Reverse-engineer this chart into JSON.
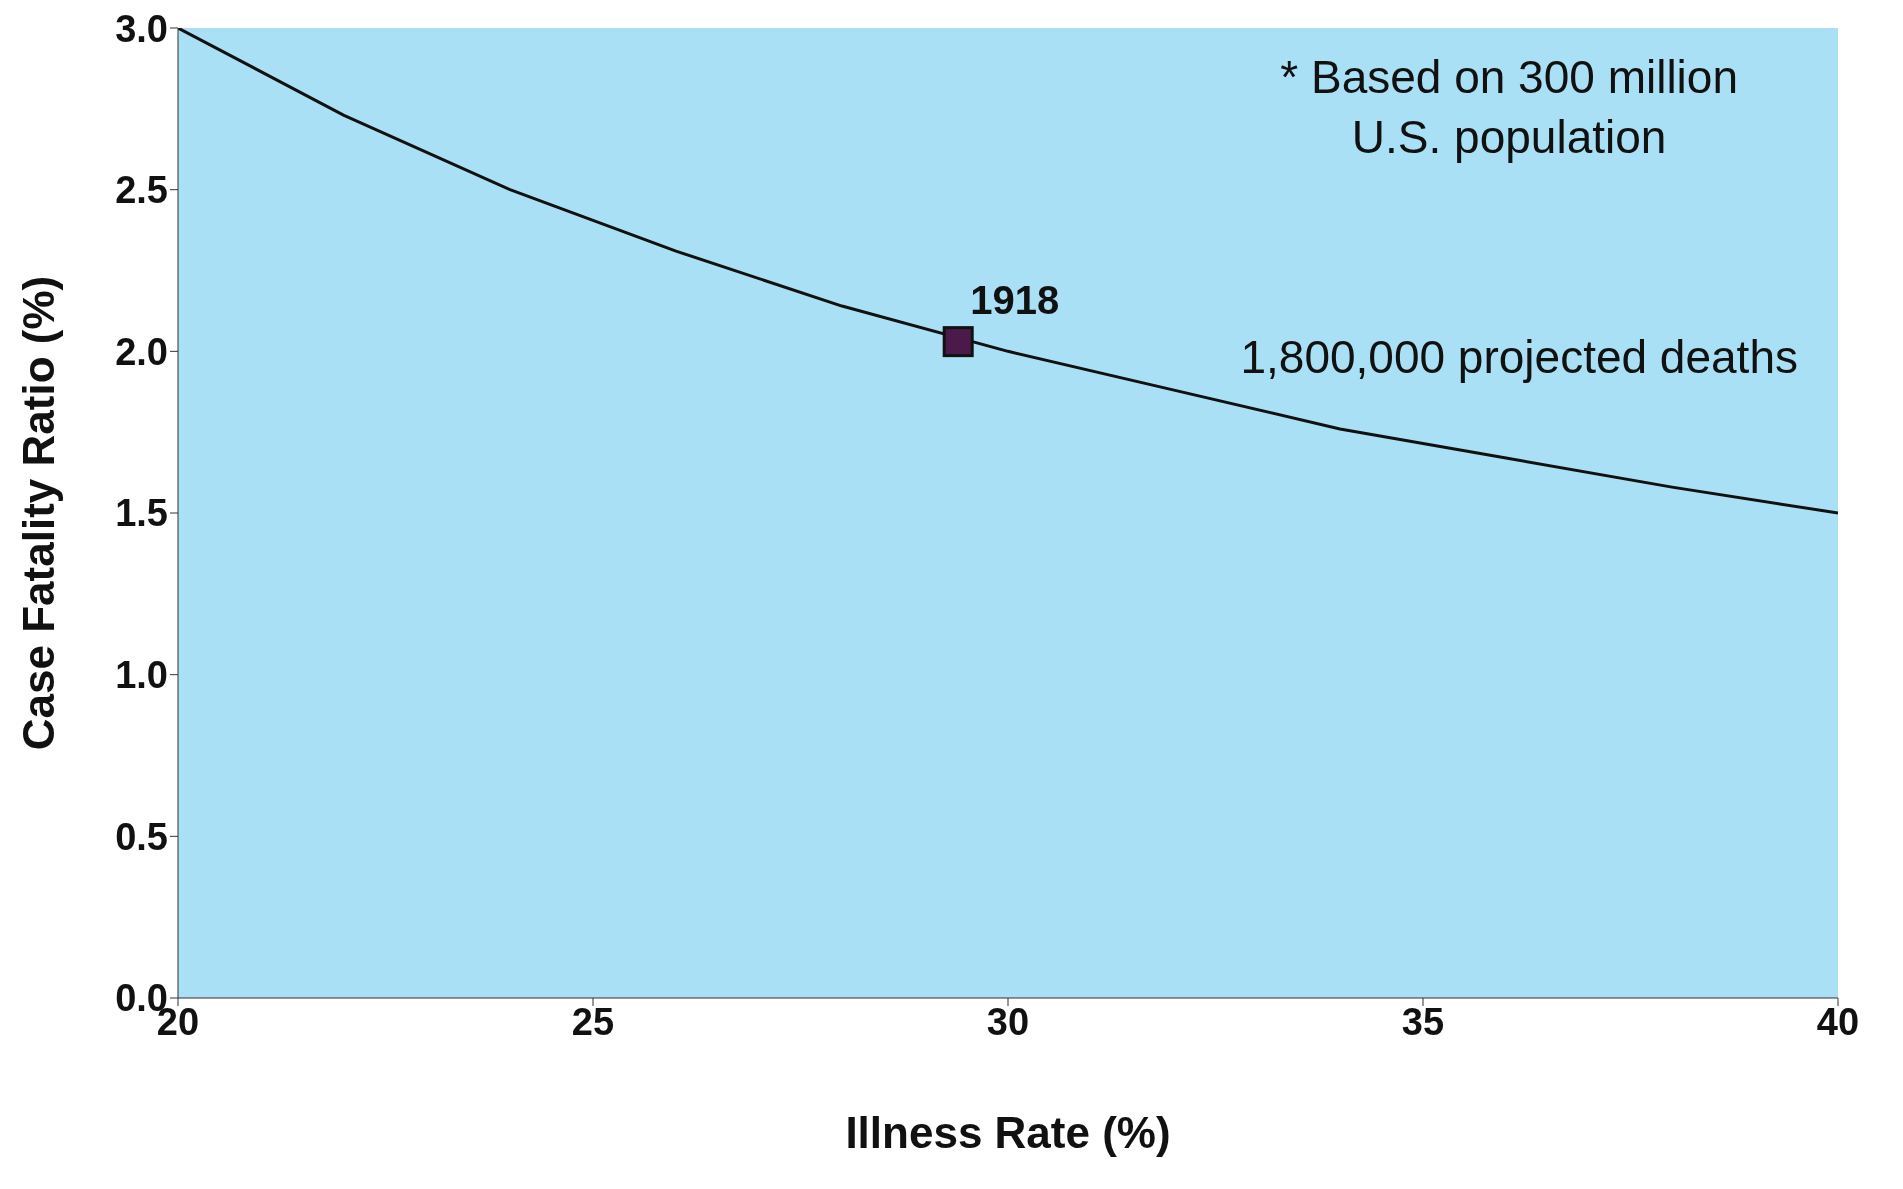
{
  "chart_data": {
    "type": "line",
    "xlabel": "Illness Rate (%)",
    "ylabel": "Case Fatality Ratio (%)",
    "xlim": [
      20,
      40
    ],
    "xticks": [
      20,
      25,
      30,
      35,
      40
    ],
    "ylim": [
      0,
      3
    ],
    "yticks": [
      {
        "value": 0,
        "label": "0.0"
      },
      {
        "value": 0.5,
        "label": "0.5"
      },
      {
        "value": 1,
        "label": "1.0"
      },
      {
        "value": 1.5,
        "label": "1.5"
      },
      {
        "value": 2,
        "label": "2.0"
      },
      {
        "value": 2.5,
        "label": "2.5"
      },
      {
        "value": 3,
        "label": "3.0"
      }
    ],
    "grid": false,
    "marker": "none",
    "line_style": "solid",
    "series": [
      {
        "color": "#111111",
        "x": [
          20,
          22,
          24,
          26,
          28,
          30,
          32,
          34,
          36,
          38,
          40
        ],
        "values": [
          3.0,
          2.73,
          2.5,
          2.31,
          2.14,
          2.0,
          1.88,
          1.76,
          1.67,
          1.58,
          1.5
        ]
      },
      {
        "type": "scatter",
        "color": "#4b1a4b",
        "marker": "square",
        "x": [
          29.4
        ],
        "values": [
          2.03
        ]
      }
    ],
    "annotations": [
      {
        "text": "1918",
        "x": 29.4,
        "y": 2.03
      },
      "* Based on 300 million\nU.S. population",
      "1,800,000 projected deaths"
    ]
  }
}
